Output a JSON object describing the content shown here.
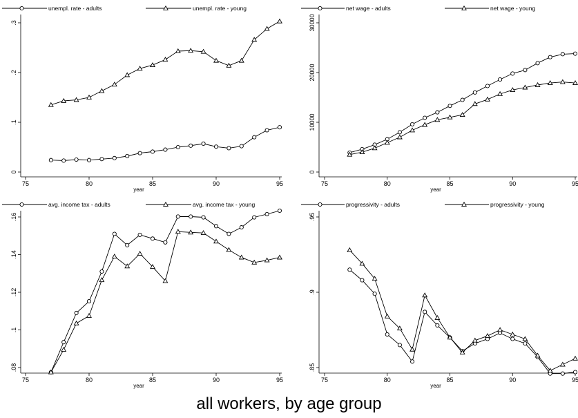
{
  "caption": "all workers, by age group",
  "colors": {
    "line": "#000000",
    "background": "#ffffff"
  },
  "chart_data": [
    {
      "type": "line",
      "xlabel": "year",
      "xlim": [
        75,
        95
      ],
      "xticks": [
        75,
        80,
        85,
        90,
        95
      ],
      "ylim": [
        0,
        0.3
      ],
      "yticks": [
        0,
        0.1,
        0.2,
        0.3
      ],
      "ytick_labels": [
        "0",
        ".1",
        ".2",
        ".3"
      ],
      "legend": "top",
      "grid": false,
      "x": [
        77,
        78,
        79,
        80,
        81,
        82,
        83,
        84,
        85,
        86,
        87,
        88,
        89,
        90,
        91,
        92,
        93,
        94,
        95
      ],
      "series": [
        {
          "name": "unempl. rate - adults",
          "marker": "circle",
          "values": [
            0.024,
            0.023,
            0.025,
            0.024,
            0.026,
            0.028,
            0.032,
            0.038,
            0.041,
            0.045,
            0.05,
            0.053,
            0.057,
            0.051,
            0.048,
            0.052,
            0.07,
            0.084,
            0.09
          ]
        },
        {
          "name": "unempl. rate - young",
          "marker": "triangle",
          "values": [
            0.135,
            0.143,
            0.145,
            0.15,
            0.163,
            0.176,
            0.195,
            0.208,
            0.215,
            0.226,
            0.243,
            0.244,
            0.242,
            0.224,
            0.214,
            0.224,
            0.266,
            0.288,
            0.303
          ]
        }
      ]
    },
    {
      "type": "line",
      "xlabel": "year",
      "xlim": [
        75,
        95
      ],
      "xticks": [
        75,
        80,
        85,
        90,
        95
      ],
      "ylim": [
        0,
        30000
      ],
      "yticks": [
        0,
        10000,
        20000,
        30000
      ],
      "ytick_labels": [
        "0",
        "10000",
        "20000",
        "30000"
      ],
      "legend": "top",
      "grid": false,
      "x": [
        77,
        78,
        79,
        80,
        81,
        82,
        83,
        84,
        85,
        86,
        87,
        88,
        89,
        90,
        91,
        92,
        93,
        94,
        95
      ],
      "series": [
        {
          "name": "net wage - adults",
          "marker": "circle",
          "values": [
            3900,
            4600,
            5500,
            6600,
            8000,
            9600,
            10900,
            12000,
            13300,
            14500,
            16000,
            17300,
            18600,
            19800,
            20500,
            21900,
            23100,
            23700,
            23800
          ]
        },
        {
          "name": "net wage - young",
          "marker": "triangle",
          "values": [
            3500,
            4000,
            4800,
            5900,
            7000,
            8400,
            9500,
            10500,
            11000,
            11500,
            13700,
            14600,
            15700,
            16500,
            17000,
            17500,
            17900,
            18100,
            17900
          ]
        }
      ]
    },
    {
      "type": "line",
      "xlabel": "year",
      "xlim": [
        75,
        95
      ],
      "xticks": [
        75,
        80,
        85,
        90,
        95
      ],
      "ylim": [
        0.08,
        0.16
      ],
      "yticks": [
        0.08,
        0.1,
        0.12,
        0.14,
        0.16
      ],
      "ytick_labels": [
        ".08",
        ".1",
        ".12",
        ".14",
        ".16"
      ],
      "legend": "top",
      "grid": false,
      "x": [
        77,
        78,
        79,
        80,
        81,
        82,
        83,
        84,
        85,
        86,
        87,
        88,
        89,
        90,
        91,
        92,
        93,
        94,
        95
      ],
      "series": [
        {
          "name": "avg. income tax - adults",
          "marker": "circle",
          "values": [
            0.0775,
            0.0935,
            0.109,
            0.1152,
            0.131,
            0.151,
            0.145,
            0.1505,
            0.1485,
            0.1465,
            0.1602,
            0.1602,
            0.1598,
            0.1551,
            0.151,
            0.1545,
            0.1598,
            0.1615,
            0.1633
          ]
        },
        {
          "name": "avg. income tax - young",
          "marker": "triangle",
          "values": [
            0.0775,
            0.0895,
            0.1035,
            0.1075,
            0.1265,
            0.139,
            0.1338,
            0.1405,
            0.1335,
            0.126,
            0.1522,
            0.1518,
            0.1515,
            0.147,
            0.1425,
            0.1385,
            0.1358,
            0.137,
            0.1385
          ]
        }
      ]
    },
    {
      "type": "line",
      "xlabel": "year",
      "xlim": [
        75,
        95
      ],
      "xticks": [
        75,
        80,
        85,
        90,
        95
      ],
      "ylim": [
        0.85,
        0.95
      ],
      "yticks": [
        0.85,
        0.9,
        0.95
      ],
      "ytick_labels": [
        ".85",
        ".9",
        ".95"
      ],
      "legend": "top",
      "grid": false,
      "x": [
        77,
        78,
        79,
        80,
        81,
        82,
        83,
        84,
        85,
        86,
        87,
        88,
        89,
        90,
        91,
        92,
        93,
        94,
        95
      ],
      "series": [
        {
          "name": "progressivity - adults",
          "marker": "circle",
          "values": [
            0.915,
            0.908,
            0.899,
            0.872,
            0.865,
            0.854,
            0.887,
            0.878,
            0.87,
            0.861,
            0.866,
            0.869,
            0.873,
            0.869,
            0.866,
            0.857,
            0.846,
            0.846,
            0.847
          ]
        },
        {
          "name": "progressivity - young",
          "marker": "triangle",
          "values": [
            0.928,
            0.919,
            0.909,
            0.884,
            0.876,
            0.862,
            0.898,
            0.883,
            0.87,
            0.86,
            0.868,
            0.871,
            0.875,
            0.872,
            0.869,
            0.858,
            0.848,
            0.852,
            0.856
          ]
        }
      ]
    }
  ]
}
